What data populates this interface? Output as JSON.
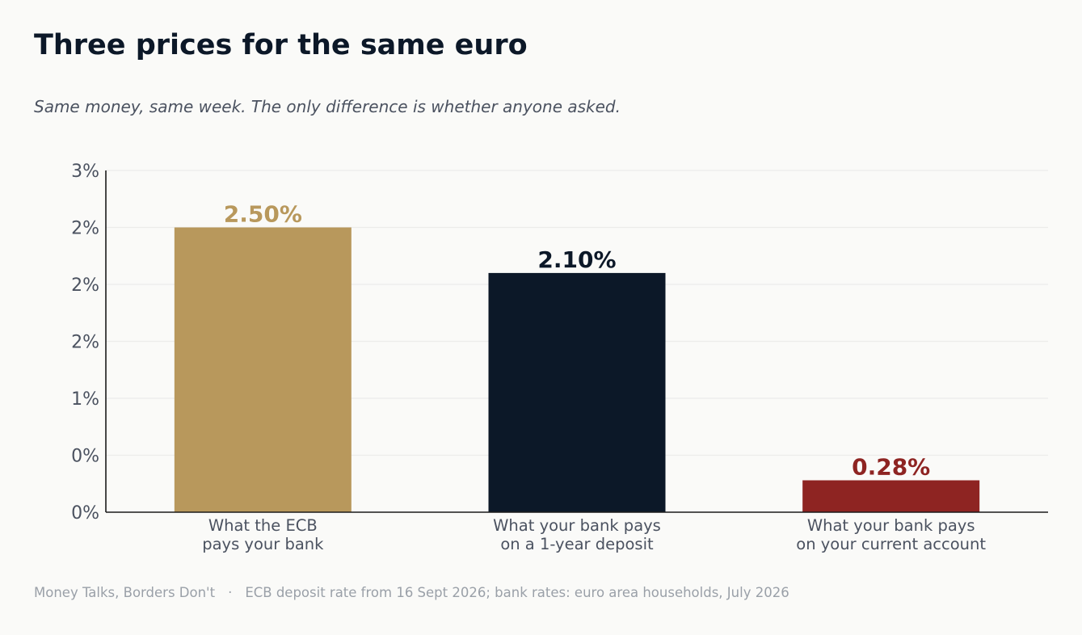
{
  "title": "Three prices for the same euro",
  "subtitle": "Same money, same week. The only difference is whether anyone asked.",
  "footer": {
    "source": "Money Talks, Borders Don't",
    "separator": "·",
    "note": "ECB deposit rate from 16 Sept 2026; bank rates: euro area households, July 2026"
  },
  "colors": {
    "background": "#FAFAF8",
    "ecb": "#B8985C",
    "deposit": "#0C1828",
    "current": "#8E2422",
    "axis_text": "#4B5260",
    "grid": "#ECECEA"
  },
  "chart_data": {
    "type": "bar",
    "categories": [
      [
        "What the ECB",
        "pays your bank"
      ],
      [
        "What your bank pays",
        "on a 1-year deposit"
      ],
      [
        "What your bank pays",
        "on your current account"
      ]
    ],
    "values": [
      2.5,
      2.1,
      0.28
    ],
    "value_labels": [
      "2.50%",
      "2.10%",
      "0.28%"
    ],
    "bar_colors": [
      "#B8985C",
      "#0C1828",
      "#8E2422"
    ],
    "ylim": [
      0,
      3
    ],
    "yticks": [
      0,
      0.5,
      1,
      1.5,
      2,
      2.5,
      3
    ],
    "ytick_labels": [
      "0%",
      "0%",
      "1%",
      "2%",
      "2%",
      "2%",
      "3%"
    ],
    "grid": true,
    "xlabel": "",
    "ylabel": ""
  }
}
